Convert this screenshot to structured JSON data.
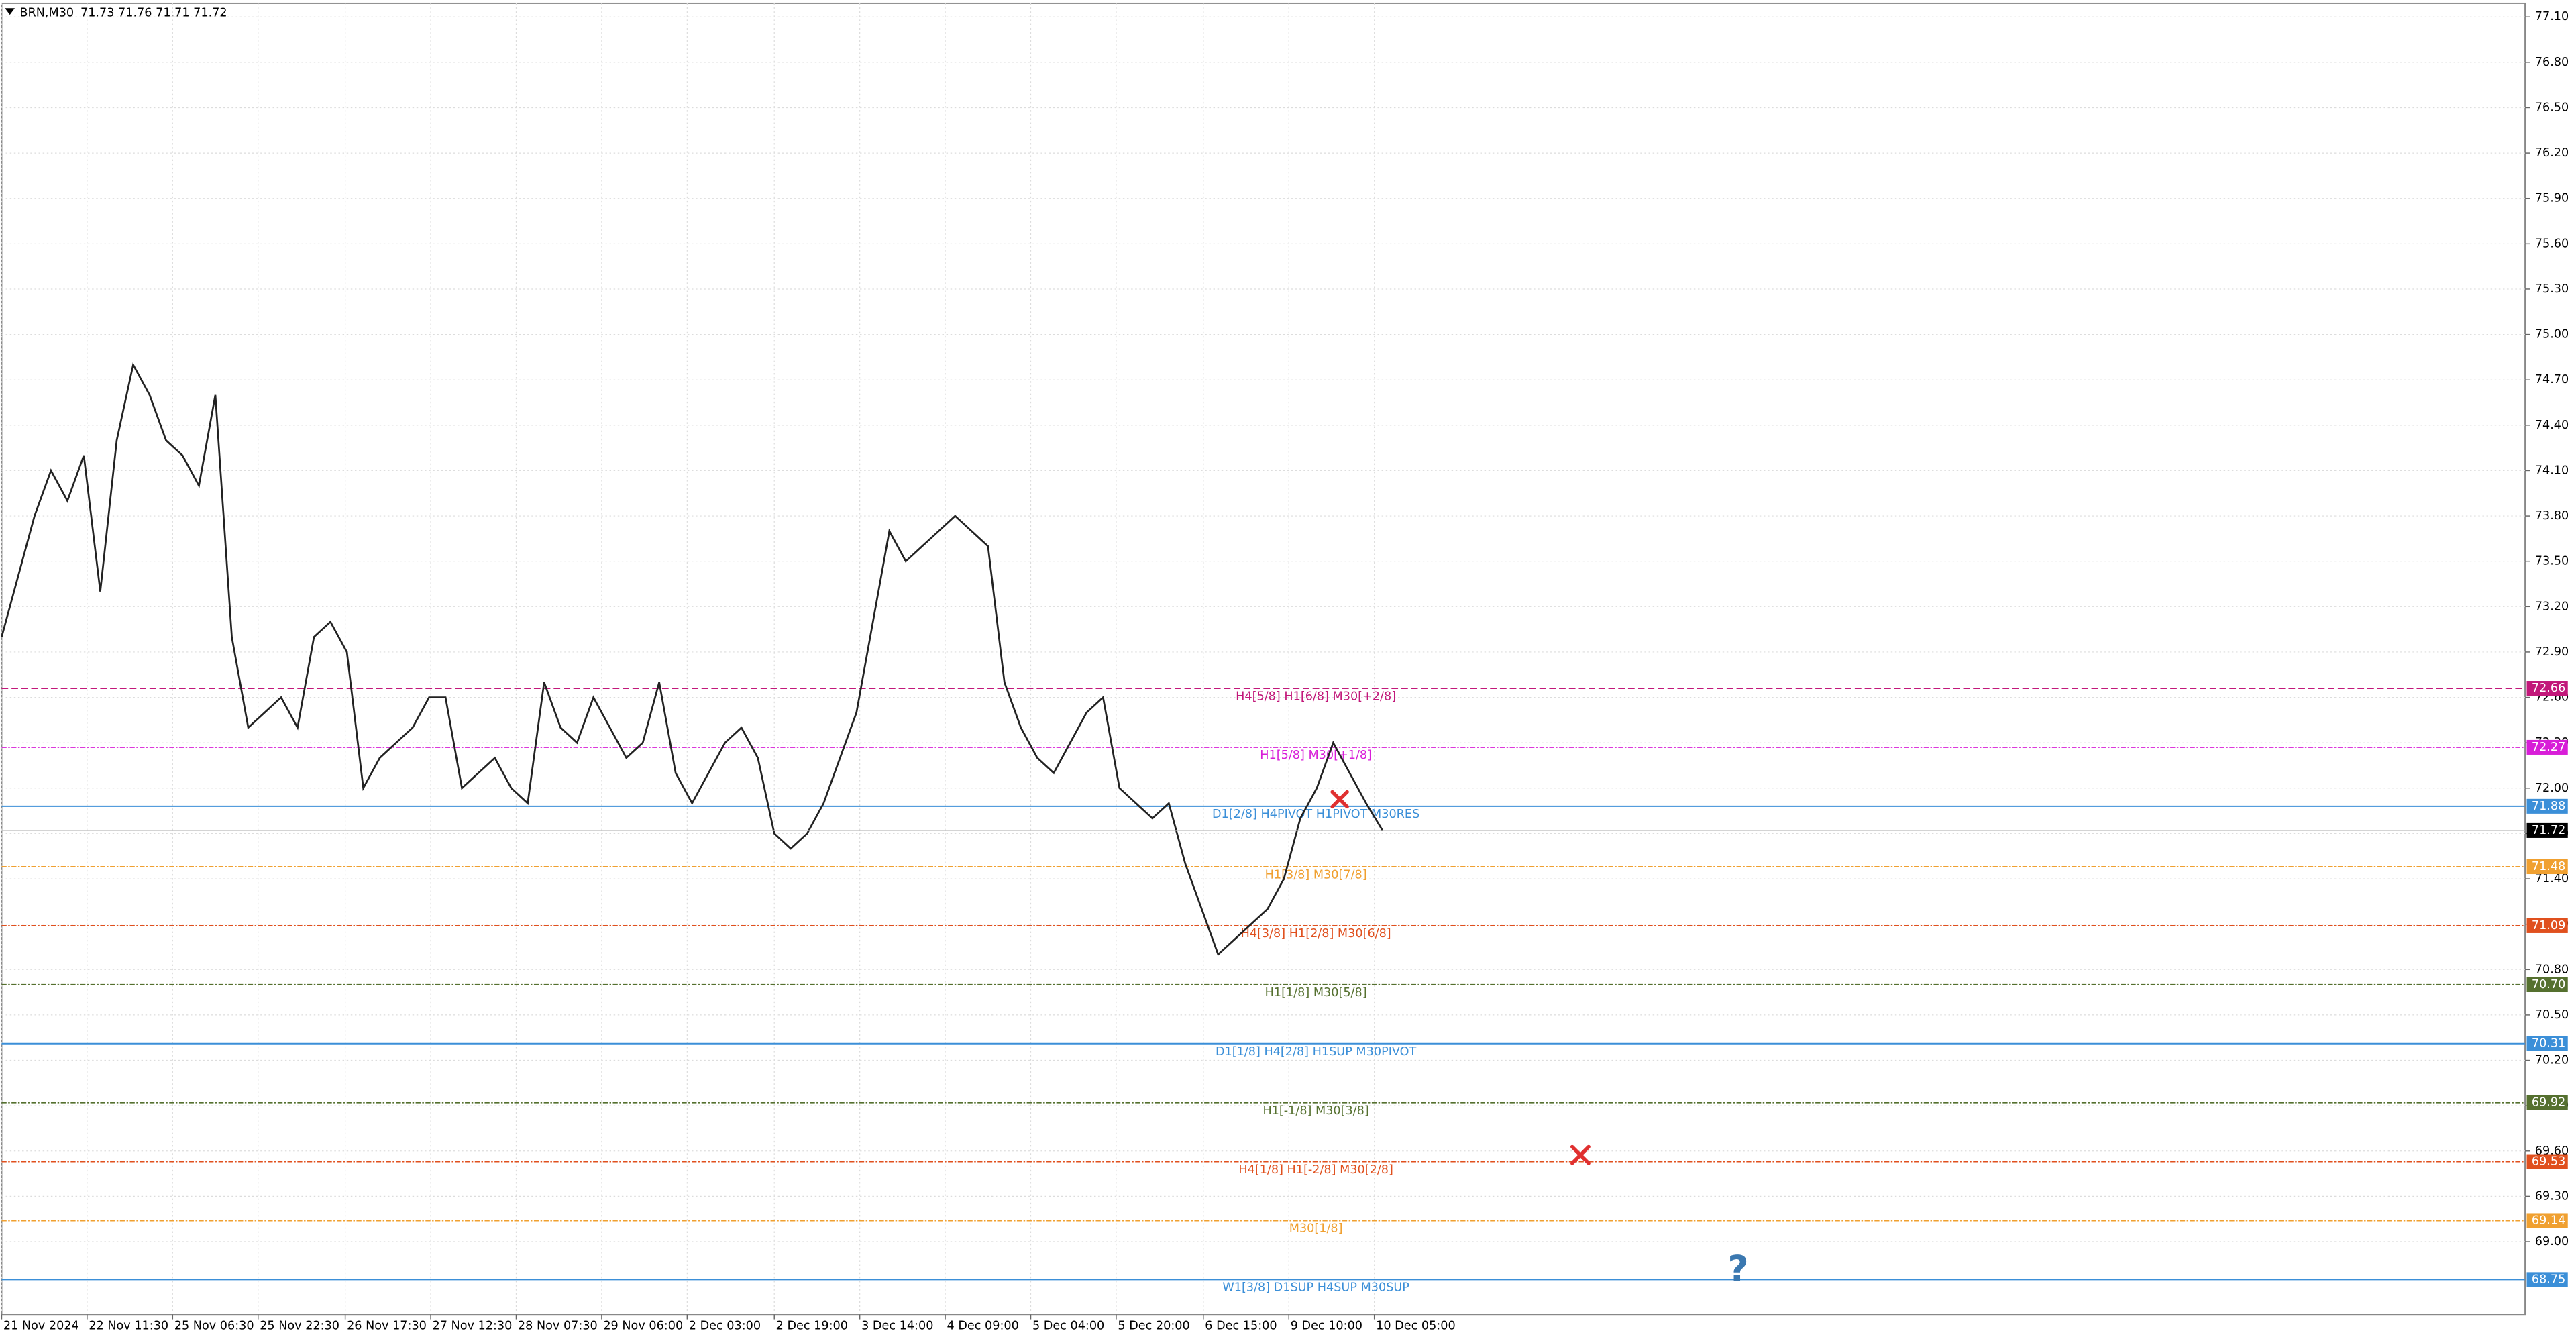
{
  "chart_data": {
    "type": "line",
    "title": "BRN,M30",
    "quote": "71.73 71.76 71.71 71.72",
    "color": "#222222",
    "values": [
      73.0,
      73.4,
      73.8,
      74.1,
      73.9,
      74.2,
      73.3,
      74.3,
      74.8,
      74.6,
      74.3,
      74.2,
      74.0,
      74.6,
      73.0,
      72.4,
      72.5,
      72.6,
      72.4,
      73.0,
      73.1,
      72.9,
      72.0,
      72.2,
      72.3,
      72.4,
      72.6,
      72.6,
      72.0,
      72.1,
      72.2,
      72.0,
      71.9,
      72.7,
      72.4,
      72.3,
      72.6,
      72.4,
      72.2,
      72.3,
      72.7,
      72.1,
      71.9,
      72.1,
      72.3,
      72.4,
      72.2,
      71.7,
      71.6,
      71.7,
      71.9,
      72.2,
      72.5,
      73.1,
      73.7,
      73.5,
      73.6,
      73.7,
      73.8,
      73.7,
      73.6,
      72.7,
      72.4,
      72.2,
      72.1,
      72.3,
      72.5,
      72.6,
      72.0,
      71.9,
      71.8,
      71.9,
      71.5,
      71.2,
      70.9,
      71.0,
      71.1,
      71.2,
      71.4,
      71.8,
      72.0,
      72.3,
      72.1,
      71.9,
      71.72
    ],
    "xlim": [
      0,
      153.5
    ],
    "xticks": [
      {
        "value": 0,
        "label": "21 Nov 2024"
      },
      {
        "value": 5.2,
        "label": "22 Nov 11:30"
      },
      {
        "value": 10.4,
        "label": "25 Nov 06:30"
      },
      {
        "value": 15.6,
        "label": "25 Nov 22:30"
      },
      {
        "value": 20.9,
        "label": "26 Nov 17:30"
      },
      {
        "value": 26.1,
        "label": "27 Nov 12:30"
      },
      {
        "value": 31.3,
        "label": "28 Nov 07:30"
      },
      {
        "value": 36.5,
        "label": "29 Nov 06:00"
      },
      {
        "value": 41.7,
        "label": "2 Dec 03:00"
      },
      {
        "value": 47,
        "label": "2 Dec 19:00"
      },
      {
        "value": 52.2,
        "label": "3 Dec 14:00"
      },
      {
        "value": 57.4,
        "label": "4 Dec 09:00"
      },
      {
        "value": 62.6,
        "label": "5 Dec 04:00"
      },
      {
        "value": 67.8,
        "label": "5 Dec 20:00"
      },
      {
        "value": 73.1,
        "label": "6 Dec 15:00"
      },
      {
        "value": 78.3,
        "label": "9 Dec 10:00"
      },
      {
        "value": 83.5,
        "label": "10 Dec 05:00"
      }
    ],
    "ylim": [
      68.52,
      77.19
    ],
    "yticks": [
      {
        "value": 77.1,
        "label": "77.10"
      },
      {
        "value": 76.8,
        "label": "76.80"
      },
      {
        "value": 76.5,
        "label": "76.50"
      },
      {
        "value": 76.2,
        "label": "76.20"
      },
      {
        "value": 75.9,
        "label": "75.90"
      },
      {
        "value": 75.6,
        "label": "75.60"
      },
      {
        "value": 75.3,
        "label": "75.30"
      },
      {
        "value": 75.0,
        "label": "75.00"
      },
      {
        "value": 74.7,
        "label": "74.70"
      },
      {
        "value": 74.4,
        "label": "74.40"
      },
      {
        "value": 74.1,
        "label": "74.10"
      },
      {
        "value": 73.8,
        "label": "73.80"
      },
      {
        "value": 73.5,
        "label": "73.50"
      },
      {
        "value": 73.2,
        "label": "73.20"
      },
      {
        "value": 72.9,
        "label": "72.90"
      },
      {
        "value": 72.6,
        "label": "72.60"
      },
      {
        "value": 72.3,
        "label": "72.30"
      },
      {
        "value": 72.0,
        "label": "72.00"
      },
      {
        "value": 71.7,
        "label": "71.70"
      },
      {
        "value": 71.4,
        "label": "71.40"
      },
      {
        "value": 71.1,
        "label": "71.10"
      },
      {
        "value": 70.8,
        "label": "70.80"
      },
      {
        "value": 70.5,
        "label": "70.50"
      },
      {
        "value": 70.2,
        "label": "70.20"
      },
      {
        "value": 69.9,
        "label": "69.90"
      },
      {
        "value": 69.6,
        "label": "69.60"
      },
      {
        "value": 69.3,
        "label": "69.30"
      },
      {
        "value": 69.0,
        "label": "69.00"
      }
    ],
    "grid": true,
    "levels": [
      {
        "label": "H4[5/8] H1[6/8] M30[+2/8]",
        "price": 72.66,
        "color": "#c2187a",
        "dash": "4 2"
      },
      {
        "label": "H1[5/8] M30[+1/8]",
        "price": 72.27,
        "color": "#d81ed8",
        "dash": "3 1 1 1"
      },
      {
        "label": "D1[2/8] H4PIVOT H1PIVOT M30RES",
        "price": 71.88,
        "color": "#3b8fd8",
        "dash": "none"
      },
      {
        "label": "H1[3/8] M30[7/8]",
        "price": 71.48,
        "color": "#f0a030",
        "dash": "3 1 1 1"
      },
      {
        "label": "H4[3/8] H1[2/8] M30[6/8]",
        "price": 71.09,
        "color": "#e0501e",
        "dash": "3 1 1 1"
      },
      {
        "label": "H1[1/8] M30[5/8]",
        "price": 70.7,
        "price_label": "70.70",
        "color": "#55702f",
        "dash": "3 1 1 1"
      },
      {
        "label": "D1[1/8] H4[2/8] H1SUP M30PIVOT",
        "price": 70.31,
        "color": "#3b8fd8",
        "dash": "none"
      },
      {
        "label": "H1[-1/8] M30[3/8]",
        "price": 69.92,
        "color": "#55702f",
        "dash": "3 1 1 1"
      },
      {
        "label": "H4[1/8] H1[-2/8] M30[2/8]",
        "price": 69.53,
        "color": "#e0501e",
        "dash": "3 1 1 1"
      },
      {
        "label": "M30[1/8]",
        "price": 69.14,
        "color": "#f0a030",
        "dash": "3 1 1 1"
      },
      {
        "label": "W1[3/8] D1SUP H4SUP M30SUP",
        "price": 68.75,
        "color": "#3b8fd8",
        "dash": "none"
      }
    ],
    "current_price": 71.72
  }
}
